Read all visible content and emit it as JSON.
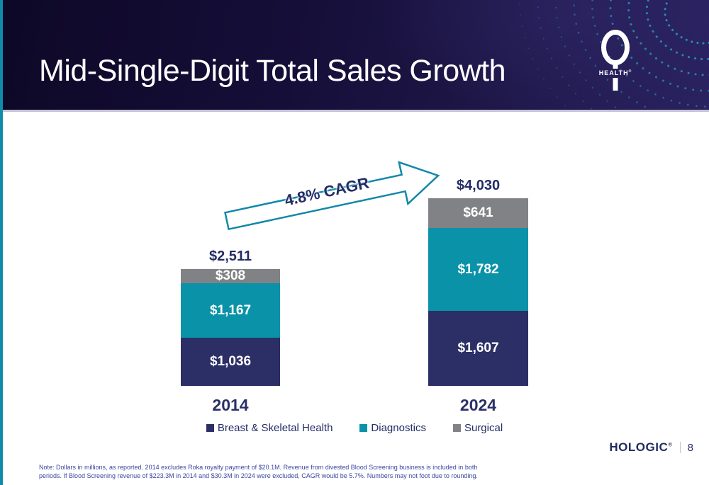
{
  "slide": {
    "title": "Mid-Single-Digit Total Sales Growth",
    "logo_text": "HEALTH",
    "logo_registered": "®",
    "footnote_line1": "Note: Dollars in millions, as reported. 2014 excludes Roka royalty payment of $20.1M. Revenue from divested Blood Screening business is included in both",
    "footnote_line2": "periods. If Blood Screening revenue of $223.3M in 2014 and $30.3M in 2024 were excluded, CAGR would be 5.7%. Numbers may not foot due to rounding.",
    "brand_name": "HOLOGIC",
    "brand_registered": "®",
    "page_number": "8"
  },
  "chart_data": {
    "type": "bar",
    "stacked": true,
    "units": "USD millions",
    "categories": [
      "2014",
      "2024"
    ],
    "totals": [
      "$2,511",
      "$4,030"
    ],
    "series": [
      {
        "name": "Breast & Skeletal Health",
        "color": "#2C2F66",
        "values": [
          1036,
          1607
        ],
        "labels": [
          "$1,036",
          "$1,607"
        ]
      },
      {
        "name": "Diagnostics",
        "color": "#0A92A8",
        "values": [
          1167,
          1782
        ],
        "labels": [
          "$1,167",
          "$1,782"
        ]
      },
      {
        "name": "Surgical",
        "color": "#808285",
        "values": [
          308,
          641
        ],
        "labels": [
          "$308",
          "$641"
        ]
      }
    ],
    "annotation": "4.8% CAGR",
    "legend_position": "bottom",
    "accent_teal": "#0E8CA9",
    "header_navy": "#150E38"
  }
}
